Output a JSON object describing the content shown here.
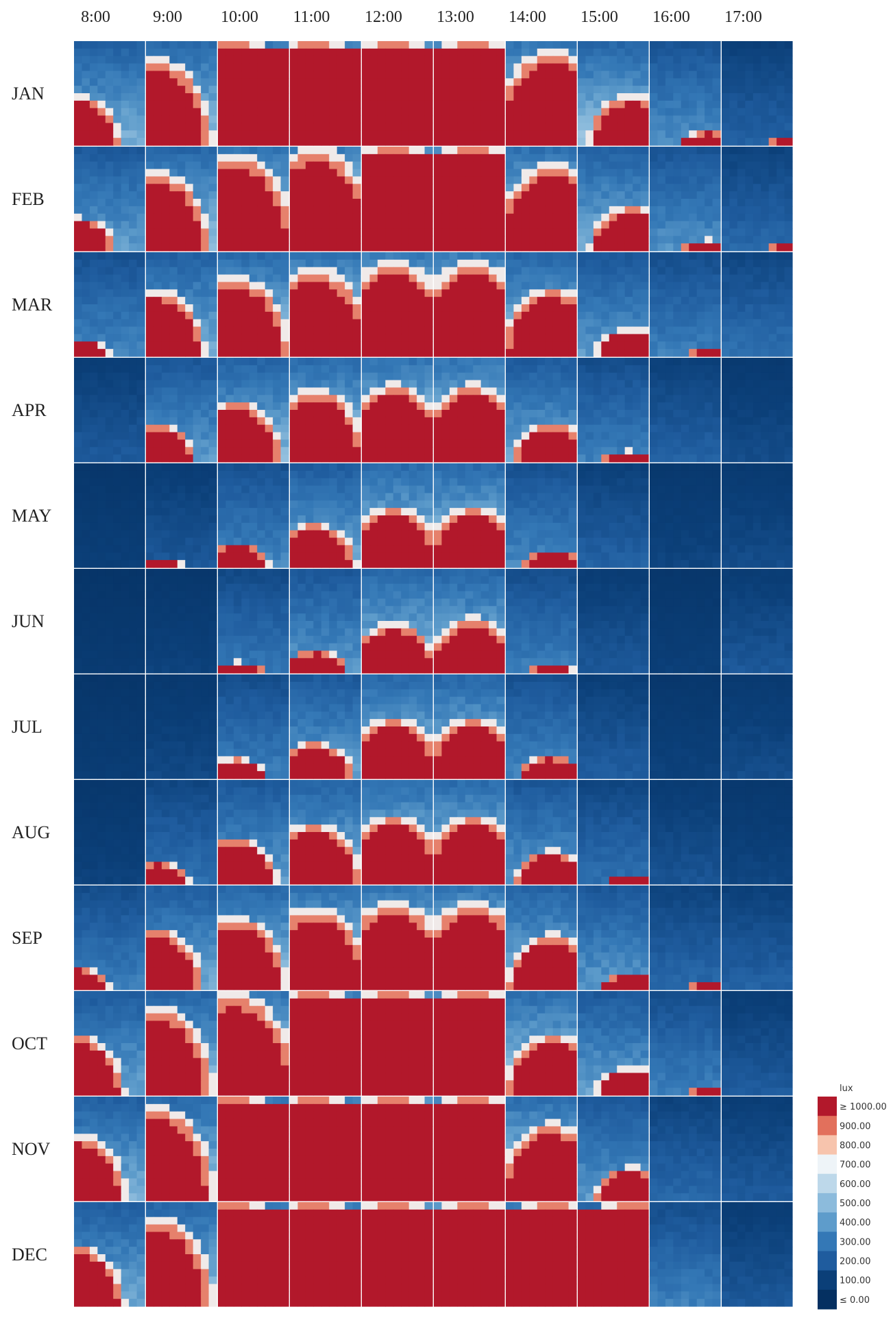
{
  "chart_data": {
    "type": "heatmap",
    "title": "",
    "hours": [
      "8:00",
      "9:00",
      "10:00",
      "11:00",
      "12:00",
      "13:00",
      "14:00",
      "15:00",
      "16:00",
      "17:00"
    ],
    "months": [
      "JAN",
      "FEB",
      "MAR",
      "APR",
      "MAY",
      "JUN",
      "JUL",
      "AUG",
      "SEP",
      "OCT",
      "NOV",
      "DEC"
    ],
    "unit_label": "lux",
    "legend_ticks": [
      "≥ 1000.00",
      "900.00",
      "800.00",
      "700.00",
      "600.00",
      "500.00",
      "400.00",
      "300.00",
      "200.00",
      "100.00",
      "≤ 0.00"
    ],
    "legend_values": [
      1000,
      900,
      800,
      700,
      600,
      500,
      400,
      300,
      200,
      100,
      0
    ],
    "value_range": [
      0,
      1000
    ],
    "color_scale": {
      "high": "#b2182b",
      "mid": "#f7f7f7",
      "low": "#053061"
    },
    "sunlit_patch_extent": [
      [
        0.45,
        0.78,
        1.0,
        1.0,
        1.0,
        1.0,
        0.86,
        0.45,
        0.12,
        0.05
      ],
      [
        0.3,
        0.72,
        0.88,
        0.93,
        1.0,
        1.0,
        0.78,
        0.4,
        0.1,
        0.05
      ],
      [
        0.15,
        0.6,
        0.72,
        0.8,
        0.86,
        0.86,
        0.62,
        0.25,
        0.05,
        0.03
      ],
      [
        0.03,
        0.35,
        0.55,
        0.66,
        0.7,
        0.7,
        0.35,
        0.1,
        0.03,
        0.02
      ],
      [
        0.0,
        0.08,
        0.22,
        0.4,
        0.55,
        0.55,
        0.15,
        0.03,
        0.02,
        0.0
      ],
      [
        0.0,
        0.0,
        0.1,
        0.2,
        0.45,
        0.5,
        0.05,
        0.02,
        0.0,
        0.0
      ],
      [
        0.0,
        0.0,
        0.18,
        0.33,
        0.55,
        0.55,
        0.2,
        0.03,
        0.02,
        0.0
      ],
      [
        0.0,
        0.2,
        0.42,
        0.55,
        0.62,
        0.62,
        0.3,
        0.06,
        0.02,
        0.0
      ],
      [
        0.2,
        0.55,
        0.66,
        0.75,
        0.8,
        0.8,
        0.5,
        0.15,
        0.05,
        0.03
      ],
      [
        0.55,
        0.8,
        0.92,
        1.0,
        1.0,
        1.0,
        0.55,
        0.25,
        0.05,
        0.02
      ],
      [
        0.6,
        0.85,
        1.0,
        1.0,
        1.0,
        1.0,
        0.7,
        0.3,
        0.03,
        0.02
      ],
      [
        0.55,
        0.8,
        1.0,
        1.0,
        1.0,
        1.0,
        1.0,
        1.0,
        0.02,
        0.0
      ]
    ],
    "background_level": [
      [
        380,
        430,
        520,
        560,
        600,
        600,
        520,
        420,
        300,
        180
      ],
      [
        330,
        420,
        500,
        540,
        580,
        580,
        480,
        380,
        300,
        200
      ],
      [
        280,
        380,
        450,
        500,
        540,
        540,
        420,
        320,
        260,
        220
      ],
      [
        160,
        320,
        400,
        450,
        500,
        500,
        350,
        260,
        180,
        120
      ],
      [
        80,
        150,
        280,
        360,
        450,
        450,
        280,
        180,
        100,
        120
      ],
      [
        60,
        90,
        240,
        320,
        420,
        420,
        260,
        150,
        80,
        150
      ],
      [
        70,
        110,
        260,
        340,
        430,
        430,
        280,
        170,
        90,
        120
      ],
      [
        90,
        220,
        330,
        400,
        460,
        460,
        320,
        220,
        140,
        100
      ],
      [
        260,
        360,
        430,
        480,
        520,
        520,
        400,
        320,
        200,
        180
      ],
      [
        350,
        420,
        500,
        550,
        600,
        600,
        460,
        340,
        260,
        160
      ],
      [
        380,
        440,
        520,
        580,
        620,
        620,
        480,
        320,
        200,
        160
      ],
      [
        360,
        420,
        520,
        580,
        620,
        620,
        520,
        400,
        260,
        150
      ]
    ]
  }
}
